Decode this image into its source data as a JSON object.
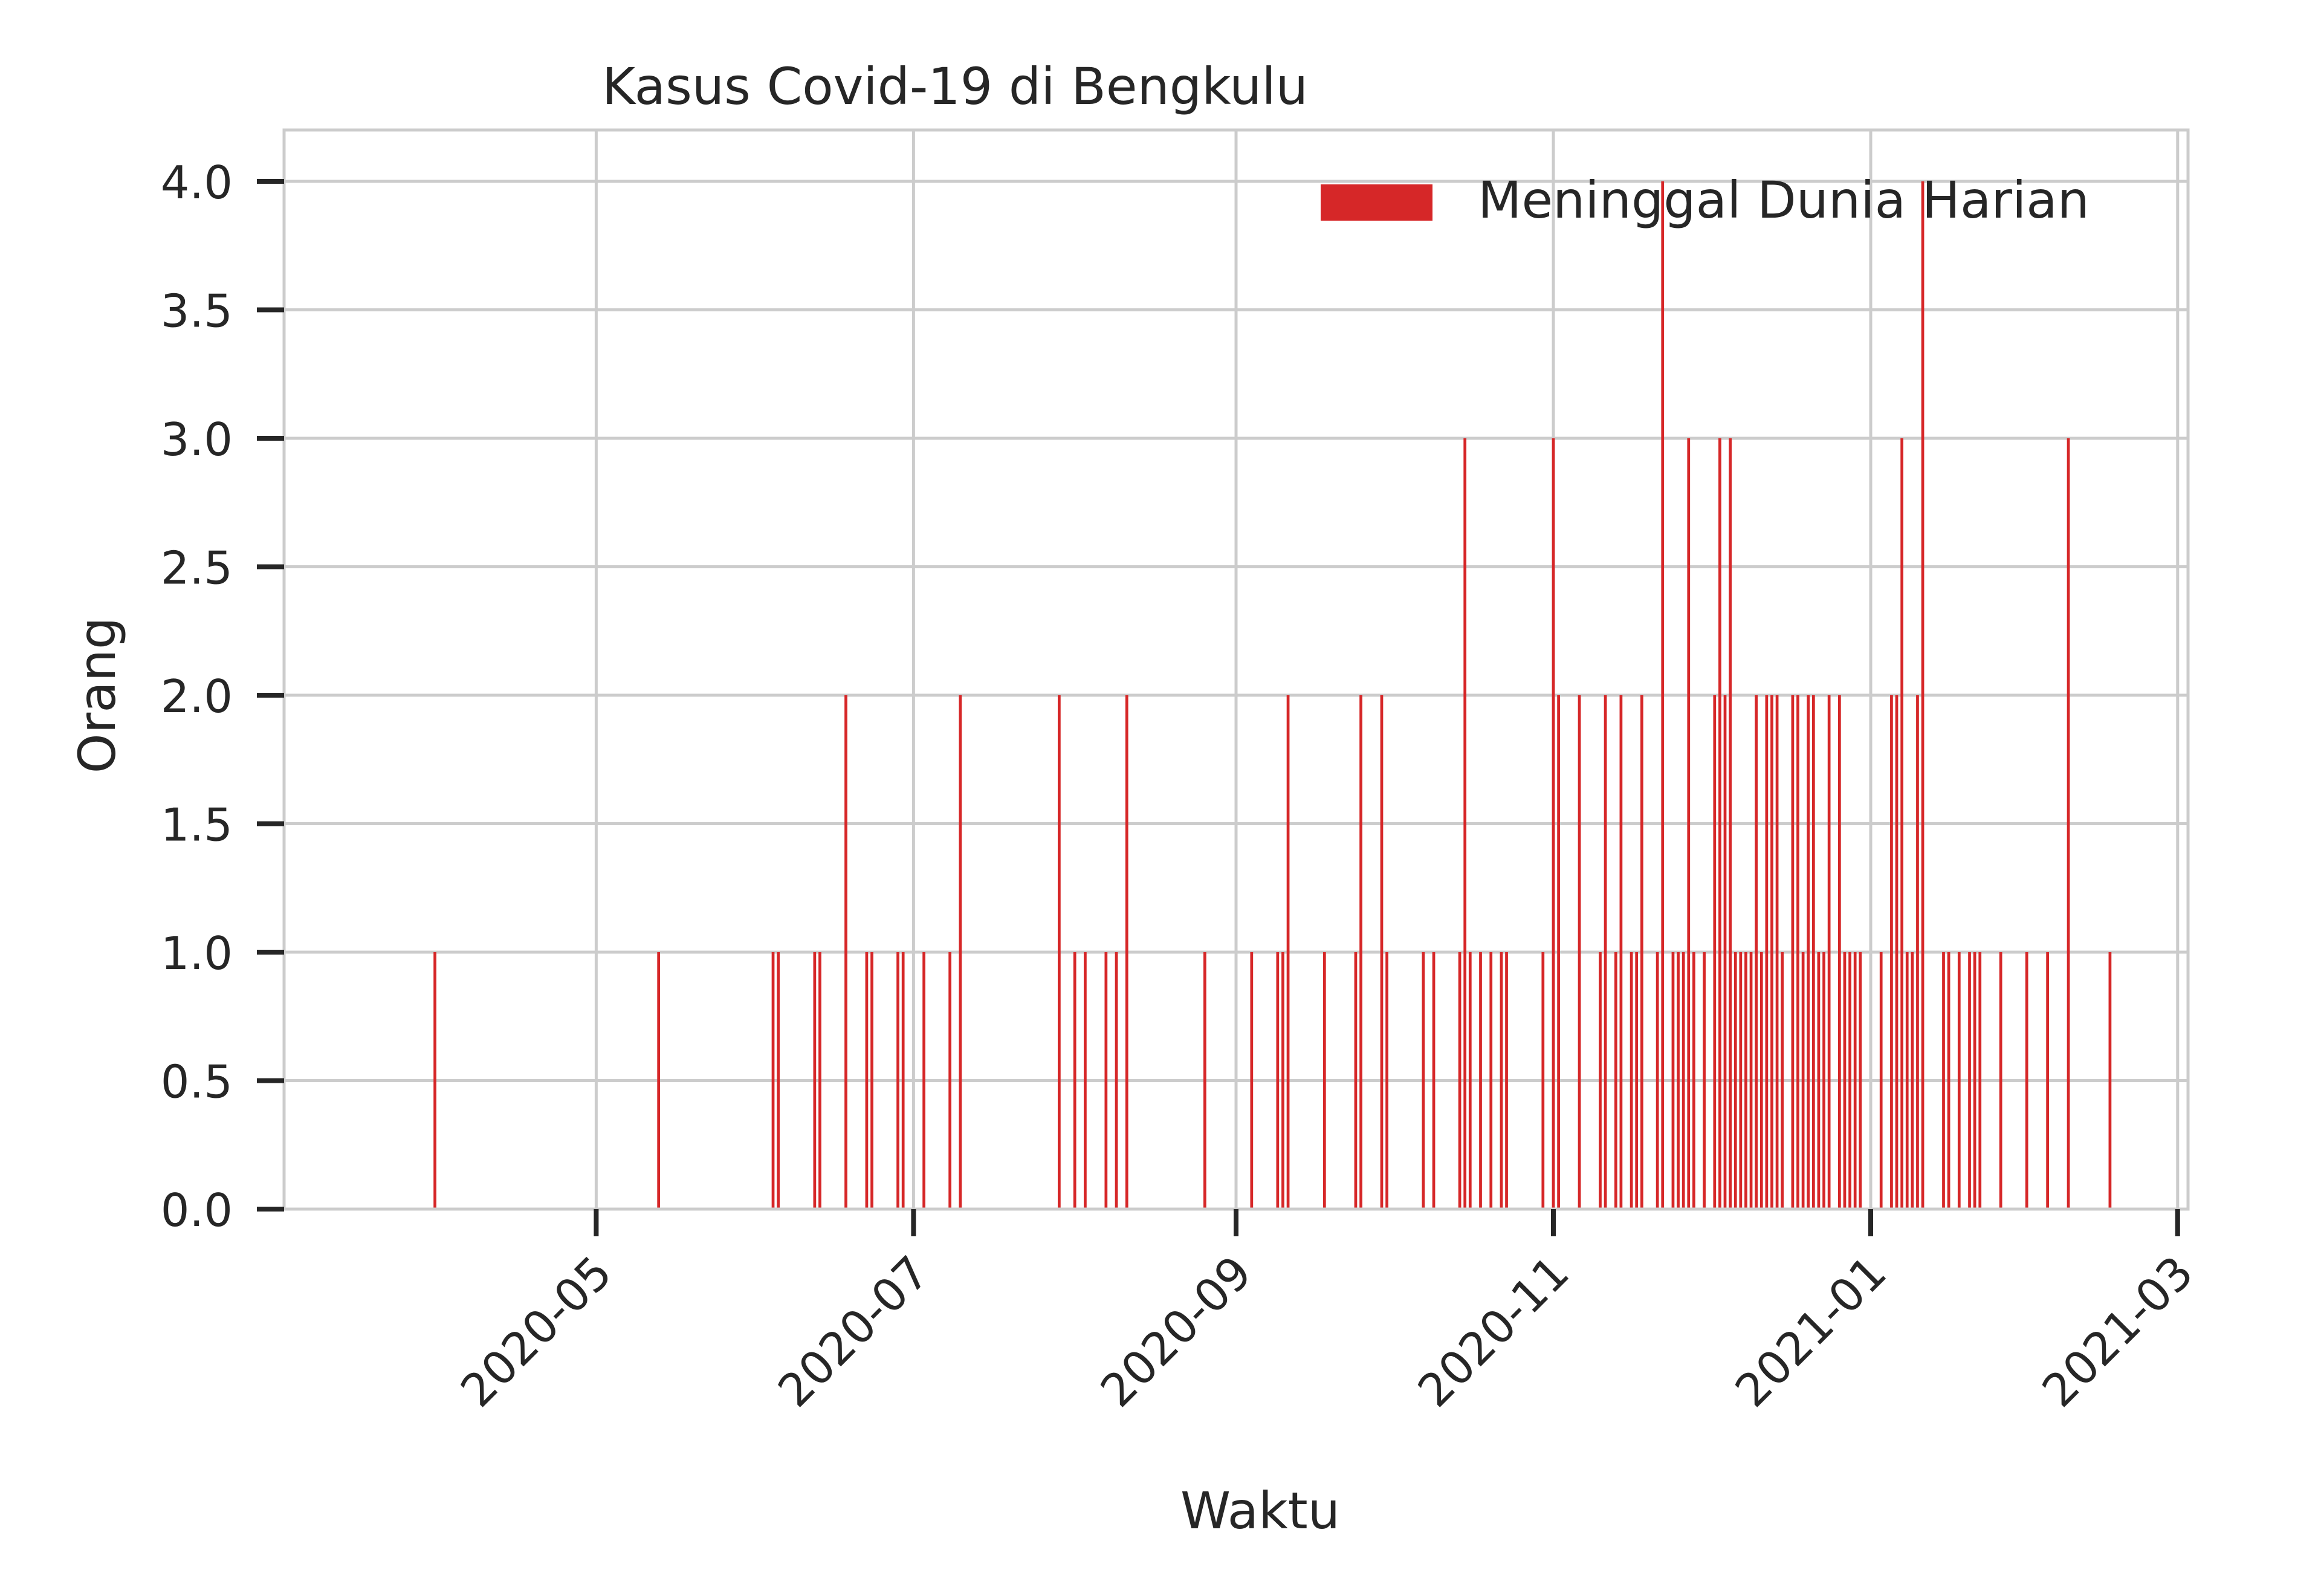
{
  "chart_data": {
    "type": "bar",
    "title": "Kasus Covid-19 di Bengkulu",
    "xlabel": "Waktu",
    "ylabel": "Orang",
    "x_axis_type": "date",
    "xlim": [
      "2020-03-02",
      "2021-03-03"
    ],
    "ylim": [
      0,
      4.2
    ],
    "grid": true,
    "legend_position": "top-right",
    "x_ticks": [
      "2020-05",
      "2020-07",
      "2020-09",
      "2020-11",
      "2021-01",
      "2021-03"
    ],
    "y_ticks": [
      "0.0",
      "0.5",
      "1.0",
      "1.5",
      "2.0",
      "2.5",
      "3.0",
      "3.5",
      "4.0"
    ],
    "bar_color": "#d62728",
    "series": [
      {
        "name": "Meninggal Dunia Harian",
        "points": [
          [
            "2020-03-31",
            1
          ],
          [
            "2020-05-13",
            1
          ],
          [
            "2020-06-04",
            1
          ],
          [
            "2020-06-05",
            1
          ],
          [
            "2020-06-12",
            1
          ],
          [
            "2020-06-13",
            1
          ],
          [
            "2020-06-18",
            2
          ],
          [
            "2020-06-22",
            1
          ],
          [
            "2020-06-23",
            1
          ],
          [
            "2020-06-28",
            1
          ],
          [
            "2020-06-29",
            1
          ],
          [
            "2020-07-03",
            1
          ],
          [
            "2020-07-08",
            1
          ],
          [
            "2020-07-10",
            2
          ],
          [
            "2020-07-29",
            2
          ],
          [
            "2020-08-01",
            1
          ],
          [
            "2020-08-03",
            1
          ],
          [
            "2020-08-07",
            1
          ],
          [
            "2020-08-09",
            1
          ],
          [
            "2020-08-11",
            2
          ],
          [
            "2020-08-26",
            1
          ],
          [
            "2020-09-04",
            1
          ],
          [
            "2020-09-09",
            1
          ],
          [
            "2020-09-10",
            1
          ],
          [
            "2020-09-11",
            2
          ],
          [
            "2020-09-18",
            1
          ],
          [
            "2020-09-24",
            1
          ],
          [
            "2020-09-25",
            2
          ],
          [
            "2020-09-29",
            2
          ],
          [
            "2020-09-30",
            1
          ],
          [
            "2020-10-07",
            1
          ],
          [
            "2020-10-09",
            1
          ],
          [
            "2020-10-14",
            1
          ],
          [
            "2020-10-15",
            3
          ],
          [
            "2020-10-16",
            1
          ],
          [
            "2020-10-18",
            1
          ],
          [
            "2020-10-20",
            1
          ],
          [
            "2020-10-22",
            1
          ],
          [
            "2020-10-23",
            1
          ],
          [
            "2020-10-30",
            1
          ],
          [
            "2020-11-01",
            3
          ],
          [
            "2020-11-02",
            2
          ],
          [
            "2020-11-06",
            2
          ],
          [
            "2020-11-10",
            1
          ],
          [
            "2020-11-11",
            2
          ],
          [
            "2020-11-13",
            1
          ],
          [
            "2020-11-14",
            2
          ],
          [
            "2020-11-16",
            1
          ],
          [
            "2020-11-17",
            1
          ],
          [
            "2020-11-18",
            2
          ],
          [
            "2020-11-21",
            1
          ],
          [
            "2020-11-22",
            4
          ],
          [
            "2020-11-24",
            1
          ],
          [
            "2020-11-25",
            1
          ],
          [
            "2020-11-26",
            1
          ],
          [
            "2020-11-27",
            3
          ],
          [
            "2020-11-28",
            1
          ],
          [
            "2020-11-30",
            1
          ],
          [
            "2020-12-02",
            2
          ],
          [
            "2020-12-03",
            3
          ],
          [
            "2020-12-04",
            2
          ],
          [
            "2020-12-05",
            3
          ],
          [
            "2020-12-06",
            1
          ],
          [
            "2020-12-07",
            1
          ],
          [
            "2020-12-08",
            1
          ],
          [
            "2020-12-09",
            1
          ],
          [
            "2020-12-10",
            2
          ],
          [
            "2020-12-11",
            1
          ],
          [
            "2020-12-12",
            2
          ],
          [
            "2020-12-13",
            2
          ],
          [
            "2020-12-14",
            2
          ],
          [
            "2020-12-15",
            1
          ],
          [
            "2020-12-17",
            2
          ],
          [
            "2020-12-18",
            2
          ],
          [
            "2020-12-19",
            1
          ],
          [
            "2020-12-20",
            2
          ],
          [
            "2020-12-21",
            2
          ],
          [
            "2020-12-22",
            1
          ],
          [
            "2020-12-23",
            1
          ],
          [
            "2020-12-24",
            2
          ],
          [
            "2020-12-26",
            2
          ],
          [
            "2020-12-27",
            1
          ],
          [
            "2020-12-28",
            1
          ],
          [
            "2020-12-29",
            1
          ],
          [
            "2020-12-30",
            1
          ],
          [
            "2021-01-03",
            1
          ],
          [
            "2021-01-05",
            2
          ],
          [
            "2021-01-06",
            2
          ],
          [
            "2021-01-07",
            3
          ],
          [
            "2021-01-08",
            1
          ],
          [
            "2021-01-09",
            1
          ],
          [
            "2021-01-10",
            2
          ],
          [
            "2021-01-11",
            4
          ],
          [
            "2021-01-15",
            1
          ],
          [
            "2021-01-16",
            1
          ],
          [
            "2021-01-18",
            1
          ],
          [
            "2021-01-20",
            1
          ],
          [
            "2021-01-21",
            1
          ],
          [
            "2021-01-22",
            1
          ],
          [
            "2021-01-26",
            1
          ],
          [
            "2021-01-31",
            1
          ],
          [
            "2021-02-04",
            1
          ],
          [
            "2021-02-08",
            3
          ],
          [
            "2021-02-16",
            1
          ]
        ]
      }
    ]
  }
}
